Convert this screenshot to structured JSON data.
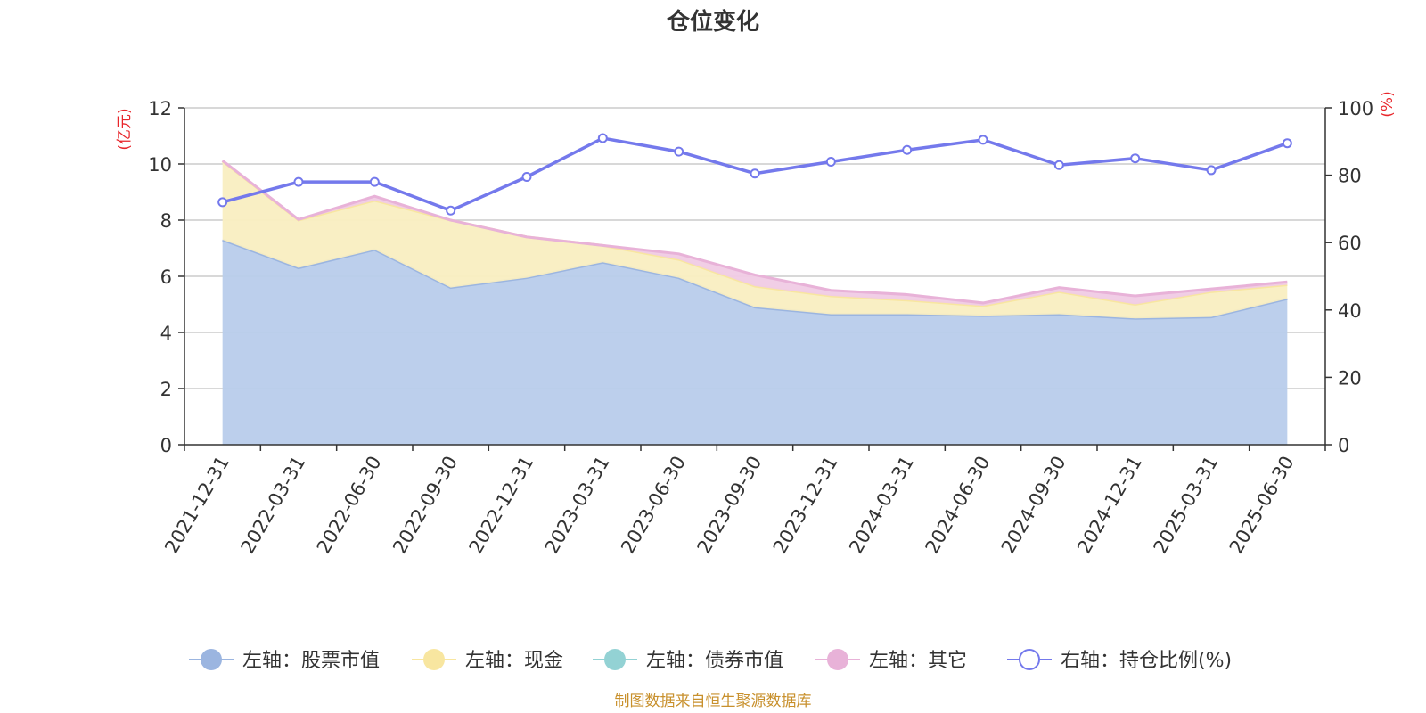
{
  "chart_data": {
    "type": "area",
    "title": "仓位变化",
    "categories": [
      "2021-12-31",
      "2022-03-31",
      "2022-06-30",
      "2022-09-30",
      "2022-12-31",
      "2023-03-31",
      "2023-06-30",
      "2023-09-30",
      "2023-12-31",
      "2024-03-31",
      "2024-06-30",
      "2024-09-30",
      "2024-12-31",
      "2025-03-31",
      "2025-06-30"
    ],
    "left_axis": {
      "unit": "(亿元)",
      "ylim": [
        0,
        12
      ],
      "ticks": [
        "0",
        "2",
        "4",
        "6",
        "8",
        "10",
        "12"
      ],
      "tick_values": [
        0,
        2,
        4,
        6,
        8,
        10,
        12
      ]
    },
    "right_axis": {
      "unit": "(%)",
      "ylim": [
        0,
        100
      ],
      "ticks": [
        "0",
        "20",
        "40",
        "60",
        "80",
        "100"
      ],
      "tick_values": [
        0,
        20,
        40,
        60,
        80,
        100
      ]
    },
    "stacked": true,
    "series": [
      {
        "name": "左轴：股票市值",
        "axis": "left",
        "color": "#9bb5e0",
        "fill": "#b8cceb",
        "values": [
          7.3,
          6.3,
          6.95,
          5.6,
          5.95,
          6.5,
          5.95,
          4.9,
          4.65,
          4.65,
          4.6,
          4.65,
          4.5,
          4.55,
          5.2
        ]
      },
      {
        "name": "左轴：现金",
        "axis": "left",
        "color": "#f8e6a0",
        "fill": "#f9eec1",
        "values": [
          2.8,
          1.7,
          1.75,
          2.4,
          1.45,
          0.6,
          0.65,
          0.75,
          0.65,
          0.5,
          0.35,
          0.8,
          0.5,
          0.9,
          0.5
        ]
      },
      {
        "name": "左轴：债券市值",
        "axis": "left",
        "color": "#93d2d4",
        "fill": "#b9e3e4",
        "values": [
          0,
          0,
          0,
          0,
          0,
          0,
          0,
          0,
          0,
          0,
          0,
          0,
          0,
          0,
          0
        ]
      },
      {
        "name": "左轴：其它",
        "axis": "left",
        "color": "#e8b2d8",
        "fill": "#f0cbe5",
        "values": [
          0.02,
          0.02,
          0.15,
          0.0,
          0.0,
          0.0,
          0.2,
          0.4,
          0.2,
          0.2,
          0.1,
          0.15,
          0.3,
          0.1,
          0.1
        ]
      },
      {
        "name": "右轴：持仓比例(%)",
        "axis": "right",
        "color": "#7479ec",
        "type": "line",
        "values": [
          72,
          78,
          78,
          69.5,
          79.5,
          91,
          87,
          80.5,
          84,
          87.5,
          90.5,
          83,
          85,
          81.5,
          89.5
        ]
      }
    ],
    "grid": true,
    "legend": "bottom-center",
    "source_note": "制图数据来自恒生聚源数据库",
    "colors": {
      "axis_text": "#333333",
      "unit_text": "#e8262b",
      "source_text": "#c8902c",
      "grid": "#cccccc"
    }
  }
}
